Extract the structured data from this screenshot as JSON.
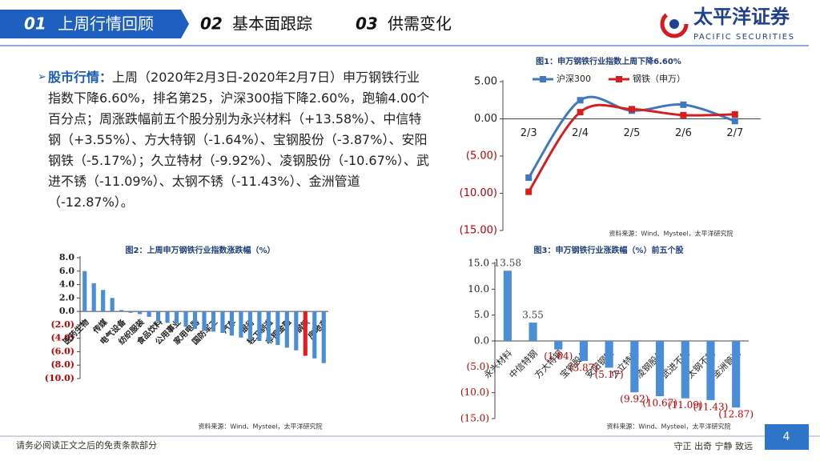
{
  "header": {
    "tabs": [
      {
        "number": "01",
        "label": "上周行情回顾"
      },
      {
        "number": "02",
        "label": "基本面跟踪"
      },
      {
        "number": "03",
        "label": "供需变化"
      }
    ],
    "logo": {
      "name": "太平洋证券",
      "english": "PACIFIC SECURITIES"
    }
  },
  "intro": {
    "label": "股市行情：",
    "text": "上周（2020年2月3日-2020年2月7日）申万钢铁行业指数下降6.60%，排名第25，沪深300指下降2.60%，跑输4.00个百分点；周涨跌幅前五个股分别为永兴材料（+13.58%）、中信特钢（+3.55%）、方大特钢（-1.64%）、宝钢股份（-3.87%）、安阳钢铁（-5.17%）；久立特材（-9.92%）、凌钢股份（-10.67%）、武进不锈（-11.09%）、太钢不锈（-11.43%）、金洲管道（-12.87%）。"
  },
  "chart_data": [
    {
      "type": "line",
      "title": "图1：申万钢铁行业指数上周下降6.60%",
      "source": "资料来源：Wind、Mysteel，太平洋研究院",
      "categories": [
        "2/3",
        "2/4",
        "2/5",
        "2/6",
        "2/7"
      ],
      "series": [
        {
          "name": "沪深300",
          "color": "#3f78c0",
          "values": [
            -7.9,
            2.5,
            1.1,
            1.9,
            -0.3
          ]
        },
        {
          "name": "钢铁（申万）",
          "color": "#d41f1f",
          "values": [
            -9.8,
            0.9,
            1.3,
            0.5,
            0.6
          ]
        }
      ],
      "ylim": [
        -15,
        5
      ],
      "yticks": [
        {
          "value": 5,
          "label": "5.00"
        },
        {
          "value": 0,
          "label": "0.00"
        },
        {
          "value": -5,
          "label": "(5.00)"
        },
        {
          "value": -10,
          "label": "(10.00)"
        },
        {
          "value": -15,
          "label": "(15.00)"
        }
      ],
      "legend": "top",
      "grid": false
    },
    {
      "type": "bar",
      "title": "图2：上周申万钢铁行业指数涨跌幅（%）",
      "source": "资料来源：Wind、Mysteel，太平洋研究院",
      "categories": [
        "医药生物",
        null,
        "传媒",
        null,
        "电气设备",
        null,
        "纺织服装",
        null,
        "食品饮料",
        null,
        "公用事业",
        null,
        "家用电器",
        null,
        "国防军工",
        null,
        "汽车",
        null,
        "银行",
        null,
        "轻工制造",
        null,
        "非银金融",
        null,
        "钢铁",
        null,
        "房地产"
      ],
      "values": [
        6.0,
        4.2,
        3.2,
        2.0,
        0.2,
        -0.2,
        -0.4,
        -0.8,
        -1.5,
        -1.7,
        -1.8,
        -2.3,
        -2.6,
        -2.9,
        -3.0,
        -3.2,
        -3.6,
        -3.9,
        -4.2,
        -4.4,
        -4.7,
        -5.0,
        -5.4,
        -5.8,
        -6.6,
        -7.0,
        -7.7
      ],
      "colors": [
        "#4a8fd6",
        "#4a8fd6",
        "#4a8fd6",
        "#4a8fd6",
        "#4a8fd6",
        "#4a8fd6",
        "#4a8fd6",
        "#4a8fd6",
        "#4a8fd6",
        "#4a8fd6",
        "#4a8fd6",
        "#4a8fd6",
        "#4a8fd6",
        "#4a8fd6",
        "#4a8fd6",
        "#4a8fd6",
        "#4a8fd6",
        "#4a8fd6",
        "#4a8fd6",
        "#4a8fd6",
        "#4a8fd6",
        "#4a8fd6",
        "#4a8fd6",
        "#4a8fd6",
        "#e02020",
        "#4a8fd6",
        "#4a8fd6"
      ],
      "ylim": [
        -10,
        8
      ],
      "yticks": [
        {
          "value": 8,
          "label": "8.0"
        },
        {
          "value": 6,
          "label": "6.0"
        },
        {
          "value": 4,
          "label": "4.0"
        },
        {
          "value": 2,
          "label": "2.0"
        },
        {
          "value": 0,
          "label": "0.0"
        },
        {
          "value": -2,
          "label": "(2.0)"
        },
        {
          "value": -4,
          "label": "(4.0)"
        },
        {
          "value": -6,
          "label": "(6.0)"
        },
        {
          "value": -8,
          "label": "(8.0)"
        },
        {
          "value": -10,
          "label": "(10.0)"
        }
      ],
      "grid": false
    },
    {
      "type": "bar",
      "title": "图3：申万钢铁行业涨跌幅（%）前五个股",
      "source": "资料来源：Wind、Mysteel，太平洋研究院",
      "categories": [
        "永兴材料",
        "中信特钢",
        "方大特钢",
        "宝钢股份",
        "安阳钢铁",
        "久立特材",
        "凌钢股份",
        "武进不锈",
        "太钢不锈",
        "金洲管道"
      ],
      "values": [
        13.58,
        3.55,
        -1.64,
        -3.87,
        -5.17,
        -9.92,
        -10.67,
        -11.09,
        -11.43,
        -12.87
      ],
      "value_labels": [
        "13.58",
        "3.55",
        "(1.64)",
        "(3.87)",
        "(5.17)",
        "(9.92)",
        "(10.67)",
        "(11.09)",
        "(11.43)",
        "(12.87)"
      ],
      "color": "#4a8fd6",
      "ylim": [
        -15,
        15
      ],
      "yticks": [
        {
          "value": 15,
          "label": "15.0"
        },
        {
          "value": 10,
          "label": "10.0"
        },
        {
          "value": 5,
          "label": "5.0"
        },
        {
          "value": 0,
          "label": "0.0"
        },
        {
          "value": -5,
          "label": "(5.0)"
        },
        {
          "value": -10,
          "label": "(10.0)"
        },
        {
          "value": -15,
          "label": "(15.0)"
        }
      ],
      "grid": false
    }
  ],
  "footer": {
    "disclaimer": "请务必阅读正文之后的免责条款部分",
    "motto": "守正 出奇 宁静 致远",
    "page": "4"
  }
}
